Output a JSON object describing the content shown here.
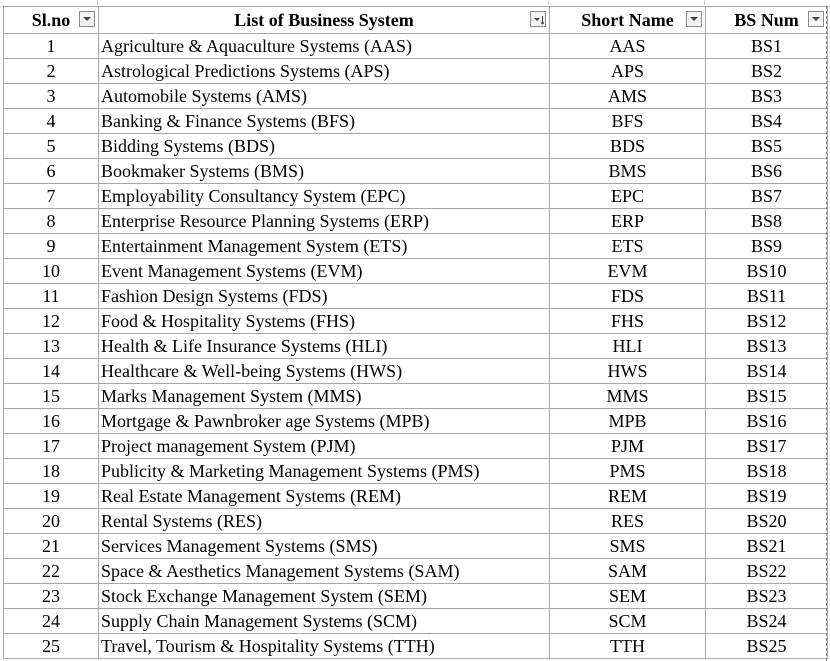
{
  "headers": {
    "slno": "Sl.no",
    "system": "List of Business System",
    "short": "Short Name",
    "bsnum": "BS Num"
  },
  "rows": [
    {
      "slno": "1",
      "system": "Agriculture & Aquaculture Systems (AAS)",
      "short": "AAS",
      "bsnum": "BS1"
    },
    {
      "slno": "2",
      "system": "Astrological Predictions Systems (APS)",
      "short": "APS",
      "bsnum": "BS2"
    },
    {
      "slno": "3",
      "system": "Automobile Systems (AMS)",
      "short": "AMS",
      "bsnum": "BS3"
    },
    {
      "slno": "4",
      "system": "Banking & Finance Systems (BFS)",
      "short": "BFS",
      "bsnum": "BS4"
    },
    {
      "slno": "5",
      "system": "Bidding Systems (BDS)",
      "short": "BDS",
      "bsnum": "BS5"
    },
    {
      "slno": "6",
      "system": "Bookmaker Systems (BMS)",
      "short": "BMS",
      "bsnum": "BS6"
    },
    {
      "slno": "7",
      "system": "Employability Consultancy System (EPC)",
      "short": "EPC",
      "bsnum": "BS7"
    },
    {
      "slno": "8",
      "system": "Enterprise Resource Planning Systems (ERP)",
      "short": "ERP",
      "bsnum": "BS8"
    },
    {
      "slno": "9",
      "system": "Entertainment Management System (ETS)",
      "short": "ETS",
      "bsnum": "BS9"
    },
    {
      "slno": "10",
      "system": "Event Management Systems (EVM)",
      "short": "EVM",
      "bsnum": "BS10"
    },
    {
      "slno": "11",
      "system": "Fashion Design Systems (FDS)",
      "short": "FDS",
      "bsnum": "BS11"
    },
    {
      "slno": "12",
      "system": "Food & Hospitality Systems (FHS)",
      "short": "FHS",
      "bsnum": "BS12"
    },
    {
      "slno": "13",
      "system": "Health & Life Insurance Systems (HLI)",
      "short": "HLI",
      "bsnum": "BS13"
    },
    {
      "slno": "14",
      "system": "Healthcare & Well-being Systems (HWS)",
      "short": "HWS",
      "bsnum": "BS14"
    },
    {
      "slno": "15",
      "system": "Marks Management System (MMS)",
      "short": "MMS",
      "bsnum": "BS15"
    },
    {
      "slno": "16",
      "system": "Mortgage & Pawnbroker age Systems (MPB)",
      "short": "MPB",
      "bsnum": "BS16"
    },
    {
      "slno": "17",
      "system": "Project management System (PJM)",
      "short": "PJM",
      "bsnum": "BS17"
    },
    {
      "slno": "18",
      "system": "Publicity & Marketing Management Systems (PMS)",
      "short": "PMS",
      "bsnum": "BS18"
    },
    {
      "slno": "19",
      "system": "Real Estate Management Systems (REM)",
      "short": "REM",
      "bsnum": "BS19"
    },
    {
      "slno": "20",
      "system": "Rental Systems (RES)",
      "short": "RES",
      "bsnum": "BS20"
    },
    {
      "slno": "21",
      "system": "Services Management Systems (SMS)",
      "short": "SMS",
      "bsnum": "BS21"
    },
    {
      "slno": "22",
      "system": "Space & Aesthetics Management Systems (SAM)",
      "short": "SAM",
      "bsnum": "BS22"
    },
    {
      "slno": "23",
      "system": "Stock Exchange Management System (SEM)",
      "short": "SEM",
      "bsnum": "BS23"
    },
    {
      "slno": "24",
      "system": "Supply Chain Management Systems (SCM)",
      "short": "SCM",
      "bsnum": "BS24"
    },
    {
      "slno": "25",
      "system": "Travel, Tourism & Hospitality Systems (TTH)",
      "short": "TTH",
      "bsnum": "BS25"
    }
  ],
  "filter_icons": {
    "slno": "dropdown-arrow-icon",
    "system": "sort-filter-icon",
    "short": "dropdown-arrow-icon",
    "bsnum": "dropdown-arrow-icon"
  },
  "colors": {
    "gridline": "#a6a6a6",
    "text": "#000000",
    "filter_button_bg": "#f3f3f3"
  }
}
